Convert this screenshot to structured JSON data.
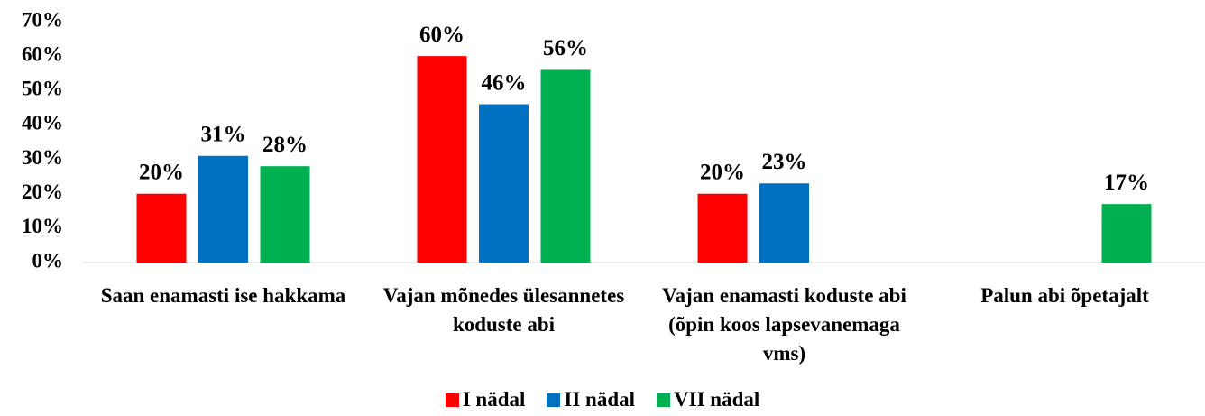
{
  "chart_data": {
    "type": "bar",
    "categories": [
      "Saan enamasti ise hakkama",
      "Vajan mõnedes ülesannetes koduste abi",
      "Vajan enamasti koduste abi (õpin koos lapsevanemaga vms)",
      "Palun abi õpetajalt"
    ],
    "series": [
      {
        "name": "I nädal",
        "color": "#ff0000",
        "values": [
          20,
          60,
          20,
          null
        ],
        "value_labels": [
          "20%",
          "60%",
          "20%",
          null
        ]
      },
      {
        "name": "II nädal",
        "color": "#0070c0",
        "values": [
          31,
          46,
          23,
          null
        ],
        "value_labels": [
          "31%",
          "46%",
          "23%",
          null
        ]
      },
      {
        "name": "VII nädal",
        "color": "#00b050",
        "values": [
          28,
          56,
          null,
          17
        ],
        "value_labels": [
          "28%",
          "56%",
          null,
          "17%"
        ]
      }
    ],
    "ylim": [
      0,
      70
    ],
    "yticks": [
      {
        "value": 0,
        "label": "0%"
      },
      {
        "value": 10,
        "label": "10%"
      },
      {
        "value": 20,
        "label": "20%"
      },
      {
        "value": 30,
        "label": "30%"
      },
      {
        "value": 40,
        "label": "40%"
      },
      {
        "value": 50,
        "label": "50%"
      },
      {
        "value": 60,
        "label": "60%"
      },
      {
        "value": 70,
        "label": "70%"
      }
    ],
    "grid": false,
    "legend": "bottom"
  }
}
